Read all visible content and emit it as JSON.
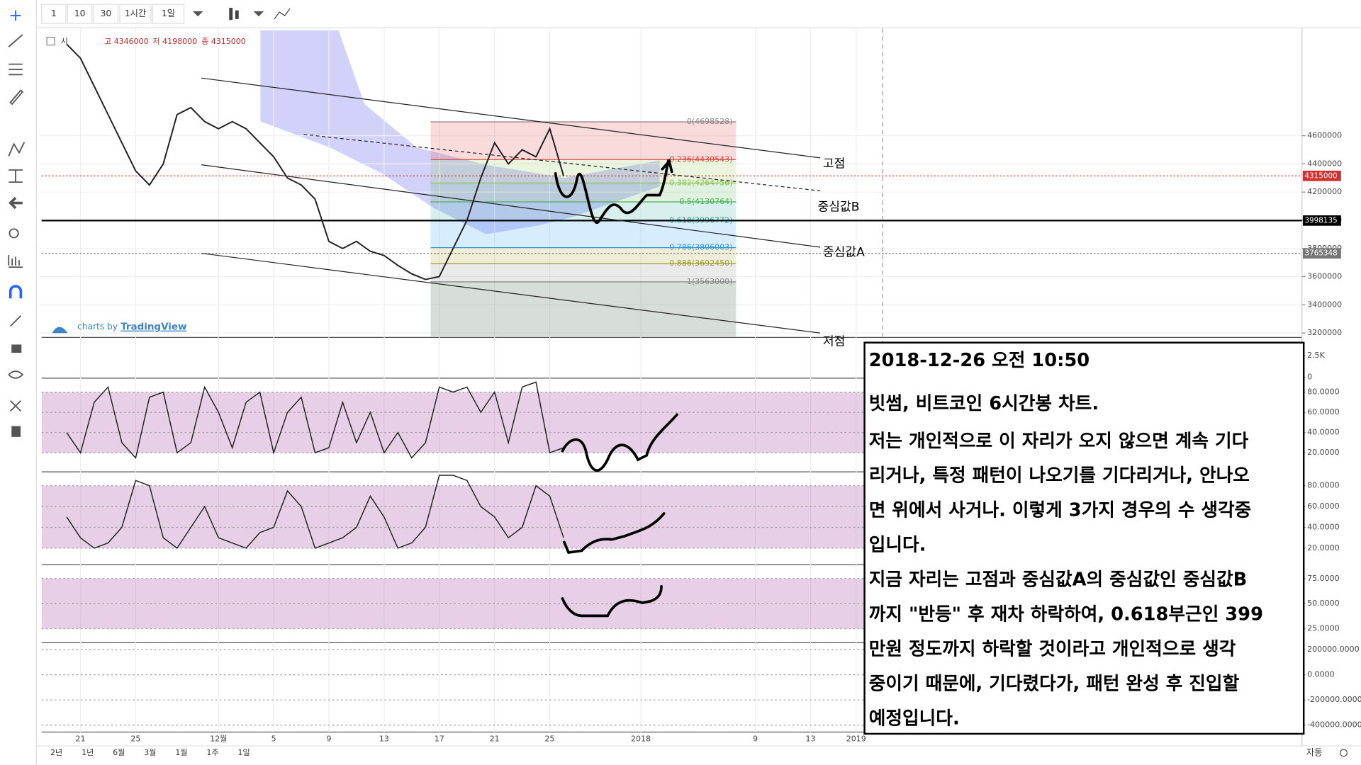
{
  "toolbar": {
    "intervals": [
      "1",
      "10",
      "30",
      "1시간",
      "1일"
    ]
  },
  "legend": {
    "open": "시",
    "high": "고 4346000",
    "low": "저 4198000",
    "close": "종 4315000"
  },
  "branding": {
    "prefix": "charts by",
    "name": "TradingView"
  },
  "chart_data": {
    "type": "line",
    "color": "#1f1f1f",
    "x": [
      -1,
      0,
      1,
      2,
      3,
      4,
      5,
      6,
      7,
      8,
      9,
      10,
      11,
      12,
      13,
      14,
      15,
      16,
      17,
      18,
      19,
      20,
      21,
      22,
      23,
      24,
      25,
      26,
      27,
      28,
      29,
      30,
      31,
      32,
      33,
      34,
      35
    ],
    "values": [
      5250000,
      5150000,
      4950000,
      4750000,
      4550000,
      4350000,
      4250000,
      4400000,
      4750000,
      4800000,
      4700000,
      4650000,
      4700000,
      4650000,
      4550000,
      4450000,
      4300000,
      4250000,
      4150000,
      3850000,
      3800000,
      3850000,
      3780000,
      3750000,
      3680000,
      3620000,
      3580000,
      3600000,
      3800000,
      4000000,
      4300000,
      4550000,
      4400000,
      4500000,
      4450000,
      4650000,
      4315000
    ],
    "xlim": [
      -3,
      88.5
    ],
    "ylim": [
      3175000,
      5360000
    ],
    "xticks": [
      {
        "value": 0,
        "label": "21"
      },
      {
        "value": 4,
        "label": "25"
      },
      {
        "value": 10,
        "label": "12월"
      },
      {
        "value": 14,
        "label": "5"
      },
      {
        "value": 18,
        "label": "9"
      },
      {
        "value": 22,
        "label": "13"
      },
      {
        "value": 26,
        "label": "17"
      },
      {
        "value": 30,
        "label": "21"
      },
      {
        "value": 34,
        "label": "25"
      },
      {
        "value": 40.6,
        "label": "2018"
      },
      {
        "value": 48.9,
        "label": "9"
      },
      {
        "value": 52.9,
        "label": "13"
      },
      {
        "value": 56.2,
        "label": "2019"
      }
    ],
    "yticks": [
      3200000,
      3400000,
      3600000,
      3800000,
      4000000,
      4200000,
      4400000,
      4600000
    ],
    "levels": [
      {
        "value": 4315000,
        "label": "4315000",
        "color": "#d32f2f"
      },
      {
        "value": 3998135,
        "label": "3998135",
        "color": "#000000"
      },
      {
        "value": 3765348,
        "label": "3765348",
        "color": "#777777"
      }
    ],
    "fib": [
      {
        "value": 4698528,
        "label": "0(4698528)",
        "color": "#888888"
      },
      {
        "value": 4430543,
        "label": "0.236(4430543)",
        "color": "#e53935"
      },
      {
        "value": 4264756,
        "label": "0.382(4264756)",
        "color": "#8bc34a"
      },
      {
        "value": 4130764,
        "label": "0.5(4130764)",
        "color": "#4caf50"
      },
      {
        "value": 3996772,
        "label": "0.618(3996772)",
        "color": "#26a69a"
      },
      {
        "value": 3806003,
        "label": "0.786(3806003)",
        "color": "#2196f3"
      },
      {
        "value": 3692450,
        "label": "0.886(3692450)",
        "color": "#9e9d24"
      },
      {
        "value": 3563000,
        "label": "1(3563000)",
        "color": "#888888"
      }
    ]
  },
  "panels": [
    {
      "ylim": [
        0,
        4480
      ],
      "yticks": [
        {
          "value": 2500,
          "label": "2.5K"
        },
        0
      ]
    },
    {
      "ylim": [
        2,
        93
      ],
      "yticks": [
        {
          "value": 80,
          "label": "80.0000"
        },
        {
          "value": 60,
          "label": "60.0000"
        },
        {
          "value": 40,
          "label": "40.0000"
        },
        {
          "value": 20,
          "label": "20.0000"
        }
      ],
      "color": "#222222",
      "values": [
        40,
        20,
        70,
        85,
        30,
        15,
        75,
        80,
        20,
        30,
        85,
        60,
        25,
        70,
        80,
        20,
        60,
        75,
        20,
        25,
        70,
        30,
        60,
        20,
        40,
        15,
        30,
        85,
        80,
        85,
        60,
        80,
        30,
        85,
        90,
        20,
        25
      ]
    },
    {
      "ylim": [
        5,
        92.5
      ],
      "yticks": [
        {
          "value": 80,
          "label": "80.0000"
        },
        {
          "value": 60,
          "label": "60.0000"
        },
        {
          "value": 40,
          "label": "40.0000"
        },
        {
          "value": 20,
          "label": "20.0000"
        }
      ],
      "color": "#222222",
      "values": [
        50,
        30,
        20,
        25,
        40,
        85,
        80,
        30,
        20,
        40,
        60,
        30,
        25,
        20,
        35,
        40,
        75,
        60,
        20,
        25,
        30,
        40,
        70,
        50,
        20,
        25,
        40,
        90,
        90,
        85,
        60,
        50,
        30,
        40,
        80,
        70,
        30
      ]
    },
    {
      "ylim": [
        12,
        88
      ],
      "yticks": [
        {
          "value": 75,
          "label": "75.0000"
        },
        {
          "value": 50,
          "label": "50.0000"
        },
        {
          "value": 25,
          "label": "25.0000"
        }
      ]
    },
    {
      "ylim": [
        -448000,
        248000
      ],
      "yticks": [
        {
          "value": 200000,
          "label": "200000.0000"
        },
        {
          "value": 0,
          "label": "0.0000"
        },
        {
          "value": -200000,
          "label": "-200000.0000"
        },
        {
          "value": -400000,
          "label": "-400000.0000"
        }
      ]
    }
  ],
  "annotations": {
    "high": "고점",
    "mid_b": "중심값B",
    "mid_a": "중심값A",
    "low": "저점"
  },
  "note": {
    "title": "2018-12-26 오전 10:50",
    "subtitle": "빗썸, 비트코인 6시간봉 차트.",
    "lines": [
      "저는 개인적으로 이 자리가 오지 않으면 계속 기다",
      "리거나, 특정 패턴이 나오기를 기다리거나, 안나오",
      "면 위에서 사거나. 이렇게 3가지 경우의 수 생각중",
      "입니다.",
      "지금 자리는 고점과 중심값A의 중심값인 중심값B",
      "까지 \"반등\" 후 재차 하락하여, 0.618부근인 399",
      "만원 정도까지 하락할 것이라고 개인적으로 생각",
      "중이기 때문에, 기다렸다가, 패턴 완성 후 진입할",
      "예정입니다."
    ]
  },
  "bottom_bar": {
    "ranges": [
      "2년",
      "1년",
      "6월",
      "3월",
      "1월",
      "1주",
      "1일"
    ],
    "scale": "자동"
  }
}
